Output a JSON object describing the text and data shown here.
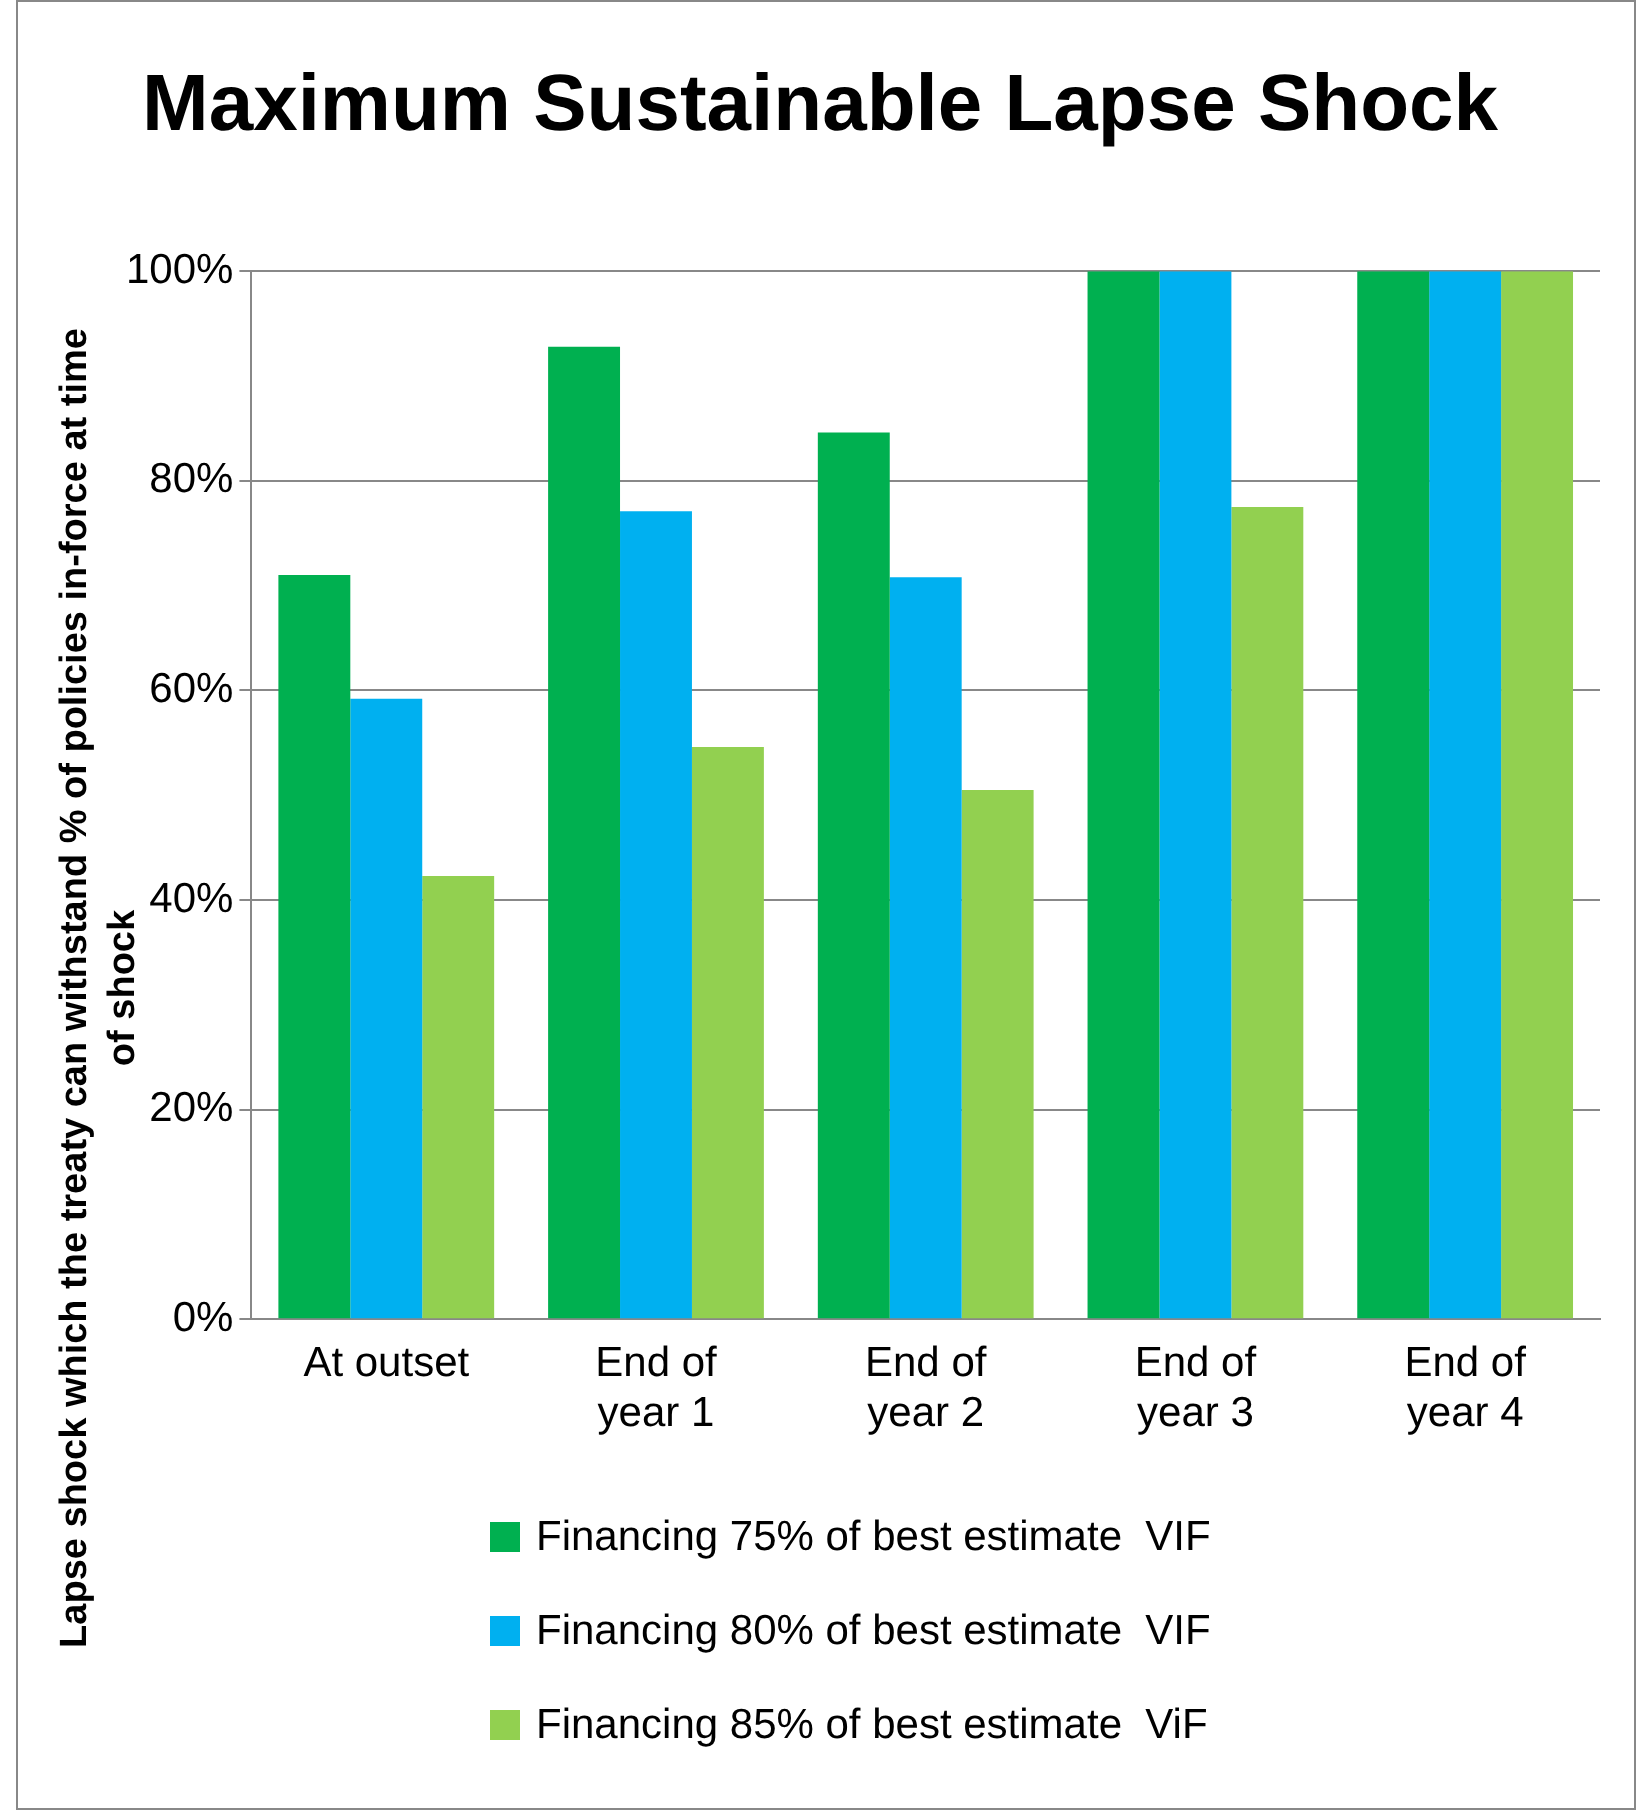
{
  "chart_data": {
    "type": "bar",
    "title": "Maximum Sustainable Lapse Shock",
    "ylabel": "Lapse shock which the treaty can withstand % of policies in-force at time of shock",
    "categories": [
      "At outset",
      "End of year 1",
      "End of year 2",
      "End of year 3",
      "End of year 4"
    ],
    "series": [
      {
        "name": "Financing 75% of best estimate  VIF",
        "color": "#00b050",
        "values": [
          71,
          92.8,
          84.6,
          100,
          100
        ]
      },
      {
        "name": "Financing 80% of best estimate  VIF",
        "color": "#00b0f0",
        "values": [
          59.2,
          77.1,
          70.8,
          100,
          100
        ]
      },
      {
        "name": "Financing 85% of best estimate  ViF",
        "color": "#92d050",
        "values": [
          42.3,
          54.6,
          50.5,
          77.5,
          100
        ]
      }
    ],
    "ylim": [
      0,
      100
    ],
    "yticks": [
      {
        "value": 0,
        "label": "0%"
      },
      {
        "value": 20,
        "label": "20%"
      },
      {
        "value": 40,
        "label": "40%"
      },
      {
        "value": 60,
        "label": "60%"
      },
      {
        "value": 80,
        "label": "80%"
      },
      {
        "value": 100,
        "label": "100%"
      }
    ],
    "grid": "y",
    "legend": "bottom"
  }
}
